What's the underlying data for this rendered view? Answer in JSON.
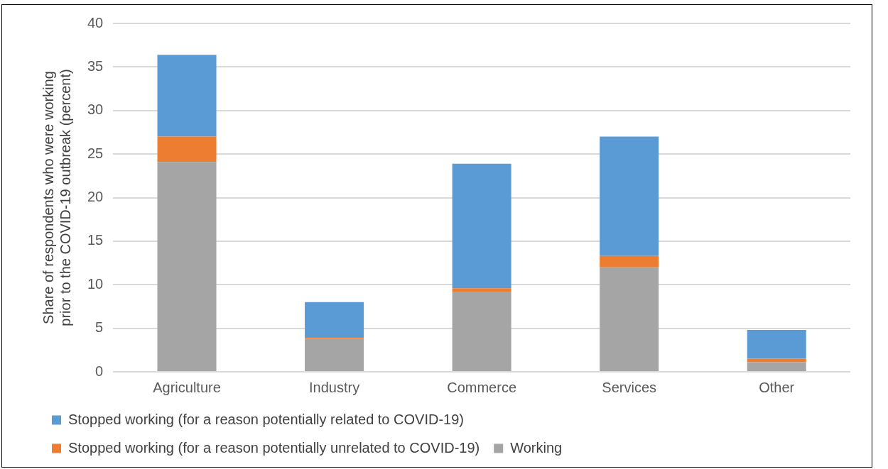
{
  "chart_data": {
    "type": "bar",
    "stacked": true,
    "ylabel": "Share of respondents who were working prior to the COVID-19 outbreak (percent)",
    "categories": [
      "Agriculture",
      "Industry",
      "Commerce",
      "Services",
      "Other"
    ],
    "series": [
      {
        "name": "Working",
        "color": "#a5a5a5",
        "values": [
          24.1,
          3.8,
          9.2,
          12.0,
          1.1
        ]
      },
      {
        "name": "Stopped working (for a reason potentially unrelated to COVID-19)",
        "color": "#ed7d31",
        "values": [
          2.9,
          0.2,
          0.4,
          1.3,
          0.4
        ]
      },
      {
        "name": "Stopped working (for a reason potentially related to COVID-19)",
        "color": "#5b9bd5",
        "values": [
          9.4,
          4.0,
          14.3,
          13.7,
          3.3
        ]
      }
    ],
    "ylim": [
      0,
      40
    ],
    "yticks": [
      0,
      5,
      10,
      15,
      20,
      25,
      30,
      35,
      40
    ],
    "grid": "y",
    "legend": "bottom"
  }
}
